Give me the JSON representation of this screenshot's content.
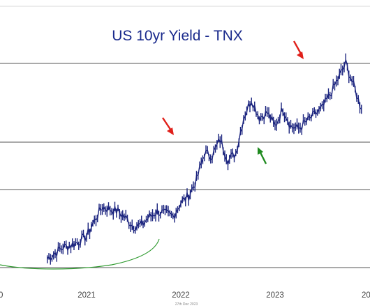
{
  "chart_data": {
    "type": "line",
    "style": "ohlc-bars",
    "title": "US 10yr Yield - TNX",
    "xlabel": "",
    "ylabel": "",
    "x_ticks": [
      "0",
      "2021",
      "2022",
      "2023",
      "20"
    ],
    "footnote": "27th Dec 2023",
    "grid": "horizontal",
    "colors": {
      "series": "#1a237e",
      "arrows_top": "#e0201a",
      "arrow_support": "#1f8a1f",
      "curve": "#2e9a2e"
    },
    "annotations": [
      {
        "kind": "arrow",
        "color": "red",
        "direction": "down",
        "at": "2022 high"
      },
      {
        "kind": "arrow",
        "color": "red",
        "direction": "down",
        "at": "2023 high"
      },
      {
        "kind": "arrow",
        "color": "green",
        "direction": "up",
        "at": "2023 low"
      },
      {
        "kind": "curve",
        "color": "green",
        "shape": "rounded base"
      }
    ],
    "series": [
      {
        "x": [
          "2020-08",
          "2020-09",
          "2020-10",
          "2020-11",
          "2020-12",
          "2021-01",
          "2021-02",
          "2021-03",
          "2021-04",
          "2021-05",
          "2021-06",
          "2021-07",
          "2021-08",
          "2021-09",
          "2021-10",
          "2021-11",
          "2021-12",
          "2022-01",
          "2022-02",
          "2022-03",
          "2022-04",
          "2022-05",
          "2022-06",
          "2022-07",
          "2022-08",
          "2022-09",
          "2022-10",
          "2022-11",
          "2022-12",
          "2023-01",
          "2023-02",
          "2023-03",
          "2023-04",
          "2023-05",
          "2023-06",
          "2023-07",
          "2023-08",
          "2023-09",
          "2023-10",
          "2023-11",
          "2023-12"
        ],
        "values": [
          0.55,
          0.68,
          0.8,
          0.85,
          0.93,
          1.05,
          1.4,
          1.7,
          1.65,
          1.6,
          1.45,
          1.27,
          1.3,
          1.48,
          1.6,
          1.55,
          1.5,
          1.8,
          1.95,
          2.3,
          2.9,
          2.85,
          3.2,
          2.75,
          2.9,
          3.7,
          4.1,
          3.7,
          3.8,
          3.5,
          3.9,
          3.5,
          3.45,
          3.6,
          3.75,
          3.9,
          4.2,
          4.55,
          4.9,
          4.4,
          3.88
        ]
      }
    ],
    "ylim": [
      0,
      5.6
    ]
  }
}
